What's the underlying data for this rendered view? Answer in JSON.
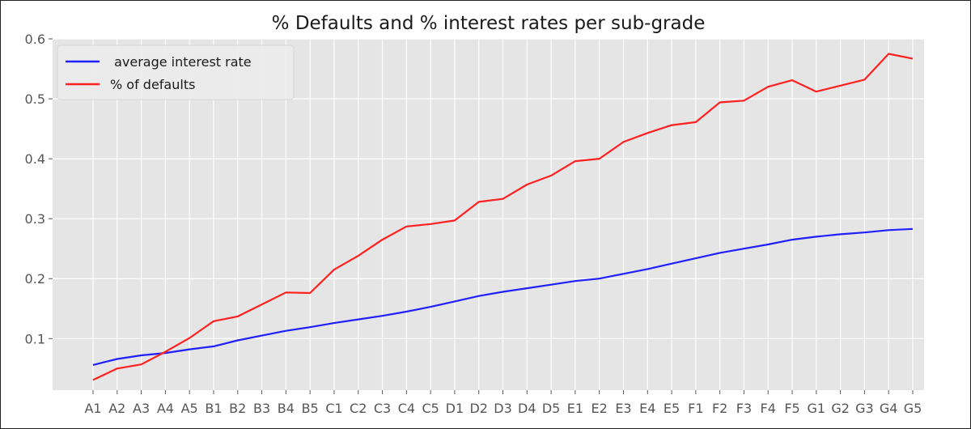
{
  "chart_data": {
    "type": "line",
    "title": "% Defaults and % interest rates per sub-grade",
    "xlabel": "",
    "ylabel": "",
    "categories": [
      "A1",
      "A2",
      "A3",
      "A4",
      "A5",
      "B1",
      "B2",
      "B3",
      "B4",
      "B5",
      "C1",
      "C2",
      "C3",
      "C4",
      "C5",
      "D1",
      "D2",
      "D3",
      "D4",
      "D5",
      "E1",
      "E2",
      "E3",
      "E4",
      "E5",
      "F1",
      "F2",
      "F3",
      "F4",
      "F5",
      "G1",
      "G2",
      "G3",
      "G4",
      "G5"
    ],
    "ylim": [
      0.014,
      0.6
    ],
    "yticks": [
      0.1,
      0.2,
      0.3,
      0.4,
      0.5,
      0.6
    ],
    "ytick_labels": [
      "0.1",
      "0.2",
      "0.3",
      "0.4",
      "0.5",
      "0.6"
    ],
    "grid": true,
    "legend_position": "top-left",
    "background": "#e5e5e5",
    "series": [
      {
        "name": " average interest rate",
        "color": "#2020ff",
        "values": [
          0.056,
          0.066,
          0.072,
          0.076,
          0.082,
          0.087,
          0.097,
          0.105,
          0.113,
          0.119,
          0.126,
          0.132,
          0.138,
          0.145,
          0.153,
          0.162,
          0.171,
          0.178,
          0.184,
          0.19,
          0.196,
          0.2,
          0.208,
          0.216,
          0.225,
          0.234,
          0.243,
          0.25,
          0.257,
          0.265,
          0.27,
          0.274,
          0.277,
          0.281,
          0.283
        ]
      },
      {
        "name": "% of defaults",
        "color": "#ff2020",
        "values": [
          0.031,
          0.05,
          0.057,
          0.078,
          0.101,
          0.129,
          0.137,
          0.157,
          0.177,
          0.176,
          0.215,
          0.238,
          0.265,
          0.287,
          0.291,
          0.297,
          0.328,
          0.333,
          0.357,
          0.372,
          0.396,
          0.4,
          0.428,
          0.443,
          0.456,
          0.461,
          0.494,
          0.497,
          0.52,
          0.531,
          0.512,
          0.522,
          0.532,
          0.575,
          0.567
        ]
      }
    ]
  }
}
